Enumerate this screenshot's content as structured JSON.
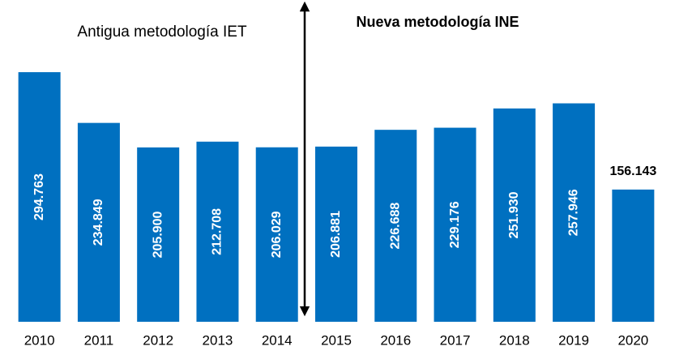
{
  "chart_data": {
    "type": "bar",
    "categories": [
      "2010",
      "2011",
      "2012",
      "2013",
      "2014",
      "2015",
      "2016",
      "2017",
      "2018",
      "2019",
      "2020"
    ],
    "values": [
      294763,
      234849,
      205900,
      212708,
      206029,
      206881,
      226688,
      229176,
      251930,
      257946,
      156143
    ],
    "value_labels": [
      "294.763",
      "234.849",
      "205.900",
      "212.708",
      "206.029",
      "206.881",
      "226.688",
      "229.176",
      "251.930",
      "257.946",
      "156.143"
    ],
    "value_label_positions": [
      "inside",
      "inside",
      "inside",
      "inside",
      "inside",
      "inside",
      "inside",
      "inside",
      "inside",
      "inside",
      "above"
    ],
    "color": "#0070c0",
    "ylim": [
      0,
      380000
    ],
    "annotations": [
      "Antigua metodología IET",
      "Nueva metodología INE"
    ]
  }
}
